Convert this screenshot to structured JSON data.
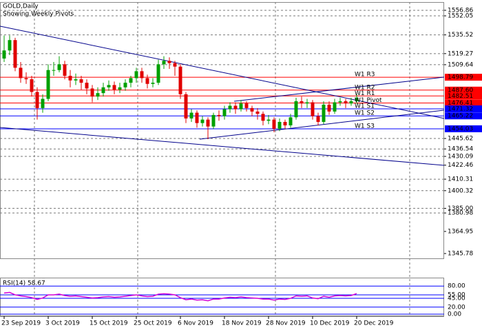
{
  "chart_data": {
    "type": "candlestick",
    "title": "GOLD,Daily",
    "subtitle": "Showing Weekly Pivots",
    "categories": [
      "23 Sep 2019",
      null,
      null,
      null,
      null,
      null,
      null,
      null,
      "3 Oct 2019",
      null,
      null,
      null,
      null,
      null,
      null,
      null,
      "15 Oct 2019",
      null,
      null,
      null,
      null,
      null,
      null,
      null,
      "25 Oct 2019",
      null,
      null,
      null,
      null,
      null,
      null,
      null,
      "6 Nov 2019",
      null,
      null,
      null,
      null,
      null,
      null,
      null,
      "18 Nov 2019",
      null,
      null,
      null,
      null,
      null,
      null,
      null,
      "28 Nov 2019",
      null,
      null,
      null,
      null,
      null,
      null,
      null,
      "10 Dec 2019",
      null,
      null,
      null,
      null,
      null,
      null,
      null,
      "20 Dec 2019"
    ],
    "open": [
      1515,
      1522,
      1531,
      1507,
      1498,
      1497,
      1486,
      1472,
      1480,
      1505,
      1505,
      1510,
      1500,
      1496,
      1497,
      1494,
      1489,
      1482,
      1485,
      1490,
      1492,
      1488,
      1490,
      1494,
      1498,
      1504,
      1498,
      1493,
      1494,
      1510,
      1513,
      1511,
      1508,
      1484,
      1463,
      1468,
      1459,
      1462,
      1456,
      1466,
      1465,
      1471,
      1474,
      1471,
      1476,
      1472,
      1469,
      1467,
      1461,
      1462,
      1454,
      1460,
      1457,
      1464,
      1478,
      1476,
      1477,
      1465,
      1460,
      1475,
      1469,
      1477,
      1478,
      1476,
      1478
    ],
    "high": [
      1535,
      1535,
      1533,
      1512,
      1503,
      1500,
      1490,
      1484,
      1510,
      1512,
      1517,
      1513,
      1505,
      1502,
      1500,
      1497,
      1492,
      1490,
      1494,
      1496,
      1495,
      1494,
      1497,
      1500,
      1507,
      1507,
      1501,
      1498,
      1514,
      1517,
      1516,
      1513,
      1510,
      1486,
      1471,
      1470,
      1465,
      1464,
      1468,
      1470,
      1474,
      1477,
      1477,
      1479,
      1478,
      1474,
      1472,
      1469,
      1466,
      1464,
      1463,
      1462,
      1467,
      1481,
      1482,
      1480,
      1479,
      1468,
      1478,
      1478,
      1480,
      1481,
      1480,
      1481,
      1484
    ],
    "low": [
      1512,
      1518,
      1504,
      1494,
      1493,
      1482,
      1462,
      1468,
      1478,
      1500,
      1503,
      1497,
      1490,
      1492,
      1488,
      1484,
      1477,
      1479,
      1482,
      1487,
      1484,
      1485,
      1487,
      1490,
      1494,
      1494,
      1489,
      1490,
      1492,
      1506,
      1506,
      1500,
      1480,
      1459,
      1460,
      1455,
      1456,
      1445,
      1454,
      1461,
      1462,
      1468,
      1467,
      1469,
      1469,
      1465,
      1462,
      1457,
      1458,
      1451,
      1452,
      1454,
      1455,
      1462,
      1472,
      1472,
      1462,
      1457,
      1458,
      1466,
      1467,
      1474,
      1472,
      1474,
      1476
    ],
    "close": [
      1522,
      1531,
      1507,
      1498,
      1497,
      1486,
      1472,
      1480,
      1505,
      1505,
      1510,
      1500,
      1496,
      1497,
      1494,
      1489,
      1482,
      1485,
      1490,
      1492,
      1488,
      1490,
      1494,
      1498,
      1504,
      1498,
      1493,
      1494,
      1510,
      1513,
      1511,
      1508,
      1484,
      1463,
      1468,
      1459,
      1462,
      1456,
      1466,
      1465,
      1471,
      1474,
      1471,
      1476,
      1472,
      1469,
      1467,
      1461,
      1462,
      1454,
      1460,
      1457,
      1464,
      1478,
      1476,
      1477,
      1465,
      1460,
      1475,
      1469,
      1477,
      1478,
      1476,
      1478,
      1481
    ],
    "up_color": "#00a000",
    "down_color": "#e00000",
    "ylim": [
      1341.6,
      1564.0
    ],
    "yticks": [
      1556.86,
      1552.05,
      1535.52,
      1519.27,
      1509.64,
      1445.62,
      1436.54,
      1430.09,
      {
        "value": 1422.46,
        "label": "1422.46",
        "grid": false
      },
      1410.31,
      1400.32,
      {
        "value": 1385.0,
        "label": "1385.00"
      },
      1380.98,
      {
        "value": 1364.95,
        "label": "1364.95",
        "grid": false
      },
      {
        "value": 1345.78,
        "label": "1345.78",
        "grid": false
      }
    ],
    "pivots": [
      {
        "name": "W1 R3",
        "value": 1498.79,
        "color": "#ff0000"
      },
      {
        "name": "W1 R2",
        "value": 1487.6,
        "label": "1487.60",
        "color": "#ff0000"
      },
      {
        "name": "W1 R1",
        "value": 1482.51,
        "color": "#ff0000"
      },
      {
        "name": "W1 Pivot",
        "value": 1476.41,
        "color": "#ff0000"
      },
      {
        "name": "W1 S1",
        "value": 1471.32,
        "color": "#0000ff"
      },
      {
        "name": "W1 S2",
        "value": 1465.22,
        "color": "#0000ff"
      },
      {
        "name": "W1 S3",
        "value": 1454.03,
        "color": "#0000ff"
      }
    ],
    "trendlines": [
      {
        "start": [
          -0.75,
          1543.1
        ],
        "end": [
          79.9,
          1463.0
        ],
        "color": "#00008b"
      },
      {
        "start": [
          -0.75,
          1455.2
        ],
        "end": [
          79.9,
          1422.3
        ],
        "color": "#00008b"
      },
      {
        "start": [
          35.5,
          1445.0
        ],
        "end": [
          79.9,
          1470.2
        ],
        "color": "#00008b"
      },
      {
        "start": [
          41.75,
          1477.9
        ],
        "end": [
          79.9,
          1498.9
        ],
        "color": "#00008b"
      }
    ],
    "rsi": {
      "title": "RSI(14) 58.67",
      "color": "#d400d4",
      "level_color": "#0000ff",
      "values": [
        60,
        62,
        55,
        52,
        50,
        47,
        42,
        46,
        55,
        55,
        57,
        53,
        51,
        52,
        50,
        48,
        46,
        47,
        49,
        50,
        48,
        49,
        51,
        53,
        55,
        52,
        50,
        51,
        57,
        58,
        57,
        55,
        47,
        41,
        43,
        40,
        41,
        38,
        43,
        43,
        46,
        48,
        47,
        49,
        47,
        46,
        45,
        43,
        43,
        40,
        43,
        42,
        45,
        52,
        51,
        52,
        46,
        44,
        51,
        48,
        52,
        53,
        52,
        53,
        58.67
      ],
      "ylim": [
        0,
        100
      ],
      "yticks": [
        {
          "value": 80,
          "label": "80.00"
        },
        {
          "value": 55,
          "label": "55.00"
        },
        {
          "value": 45,
          "label": "45.00"
        },
        {
          "value": 20,
          "label": "20.00"
        },
        {
          "value": 0,
          "label": "0.00"
        }
      ]
    }
  }
}
